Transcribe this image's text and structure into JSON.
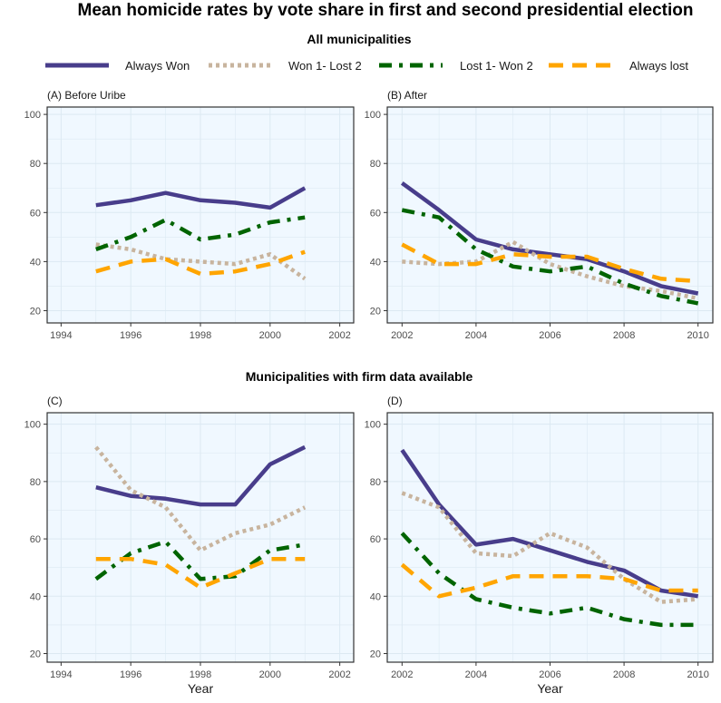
{
  "title": "Mean homicide rates by vote share in first and second presidential election",
  "colors": {
    "always_won": "#483D8B",
    "won1_lost2": "#C8B49E",
    "lost1_won2": "#006400",
    "always_lost": "#FFA500",
    "panel_bg": "#F0F8FF",
    "grid": "#DCE9F2"
  },
  "legend": [
    "Always Won",
    "Won 1- Lost 2",
    "Lost 1- Won 2",
    "Always lost"
  ],
  "chart_data": [
    {
      "type": "line",
      "section": "All municipalities",
      "panel_label": "(A) Before Uribe",
      "xlabel": "",
      "xlim": [
        1993.6,
        2002.4
      ],
      "ylim": [
        15,
        103
      ],
      "xticks": [
        1994,
        1996,
        1998,
        2000,
        2002
      ],
      "yticks": [
        20,
        40,
        60,
        80,
        100
      ],
      "x": [
        1995,
        1996,
        1997,
        1998,
        1999,
        2000,
        2001
      ],
      "series": [
        {
          "name": "Always Won",
          "values": [
            63,
            65,
            68,
            65,
            64,
            62,
            70
          ]
        },
        {
          "name": "Won 1- Lost 2",
          "values": [
            47,
            45,
            41,
            40,
            39,
            43,
            33
          ]
        },
        {
          "name": "Lost 1- Won 2",
          "values": [
            45,
            50,
            57,
            49,
            51,
            56,
            58
          ]
        },
        {
          "name": "Always lost",
          "values": [
            36,
            40,
            41,
            35,
            36,
            39,
            44
          ]
        }
      ]
    },
    {
      "type": "line",
      "section": "All municipalities",
      "panel_label": "(B) After",
      "xlabel": "",
      "xlim": [
        2001.6,
        2010.4
      ],
      "ylim": [
        15,
        103
      ],
      "xticks": [
        2002,
        2004,
        2006,
        2008,
        2010
      ],
      "yticks": [
        20,
        40,
        60,
        80,
        100
      ],
      "x": [
        2002,
        2003,
        2004,
        2005,
        2006,
        2007,
        2008,
        2009,
        2010
      ],
      "series": [
        {
          "name": "Always Won",
          "values": [
            72,
            61,
            49,
            45,
            43,
            41,
            36,
            30,
            27
          ]
        },
        {
          "name": "Won 1- Lost 2",
          "values": [
            40,
            39,
            40,
            48,
            39,
            34,
            30,
            28,
            25
          ]
        },
        {
          "name": "Lost 1- Won 2",
          "values": [
            61,
            58,
            45,
            38,
            36,
            38,
            31,
            26,
            23
          ]
        },
        {
          "name": "Always lost",
          "values": [
            47,
            39,
            39,
            43,
            42,
            42,
            37,
            33,
            32
          ]
        }
      ]
    },
    {
      "type": "line",
      "section": "Municipalities with firm data available",
      "panel_label": "(C)",
      "xlabel": "Year",
      "xlim": [
        1993.6,
        2002.4
      ],
      "ylim": [
        17,
        104
      ],
      "xticks": [
        1994,
        1996,
        1998,
        2000,
        2002
      ],
      "yticks": [
        20,
        40,
        60,
        80,
        100
      ],
      "x": [
        1995,
        1996,
        1997,
        1998,
        1999,
        2000,
        2001
      ],
      "series": [
        {
          "name": "Always Won",
          "values": [
            78,
            75,
            74,
            72,
            72,
            86,
            92
          ]
        },
        {
          "name": "Won 1- Lost 2",
          "values": [
            92,
            77,
            71,
            56,
            62,
            65,
            71
          ]
        },
        {
          "name": "Lost 1- Won 2",
          "values": [
            46,
            55,
            59,
            46,
            47,
            56,
            58
          ]
        },
        {
          "name": "Always lost",
          "values": [
            53,
            53,
            51,
            43,
            48,
            53,
            53
          ]
        }
      ]
    },
    {
      "type": "line",
      "section": "Municipalities with firm data available",
      "panel_label": "(D)",
      "xlabel": "Year",
      "xlim": [
        2001.6,
        2010.4
      ],
      "ylim": [
        17,
        104
      ],
      "xticks": [
        2002,
        2004,
        2006,
        2008,
        2010
      ],
      "yticks": [
        20,
        40,
        60,
        80,
        100
      ],
      "x": [
        2002,
        2003,
        2004,
        2005,
        2006,
        2007,
        2008,
        2009,
        2010
      ],
      "series": [
        {
          "name": "Always Won",
          "values": [
            91,
            72,
            58,
            60,
            56,
            52,
            49,
            42,
            40
          ]
        },
        {
          "name": "Won 1- Lost 2",
          "values": [
            76,
            71,
            55,
            54,
            62,
            57,
            46,
            38,
            39
          ]
        },
        {
          "name": "Lost 1- Won 2",
          "values": [
            62,
            48,
            39,
            36,
            34,
            36,
            32,
            30,
            30
          ]
        },
        {
          "name": "Always lost",
          "values": [
            51,
            40,
            43,
            47,
            47,
            47,
            46,
            42,
            42
          ]
        }
      ]
    }
  ]
}
